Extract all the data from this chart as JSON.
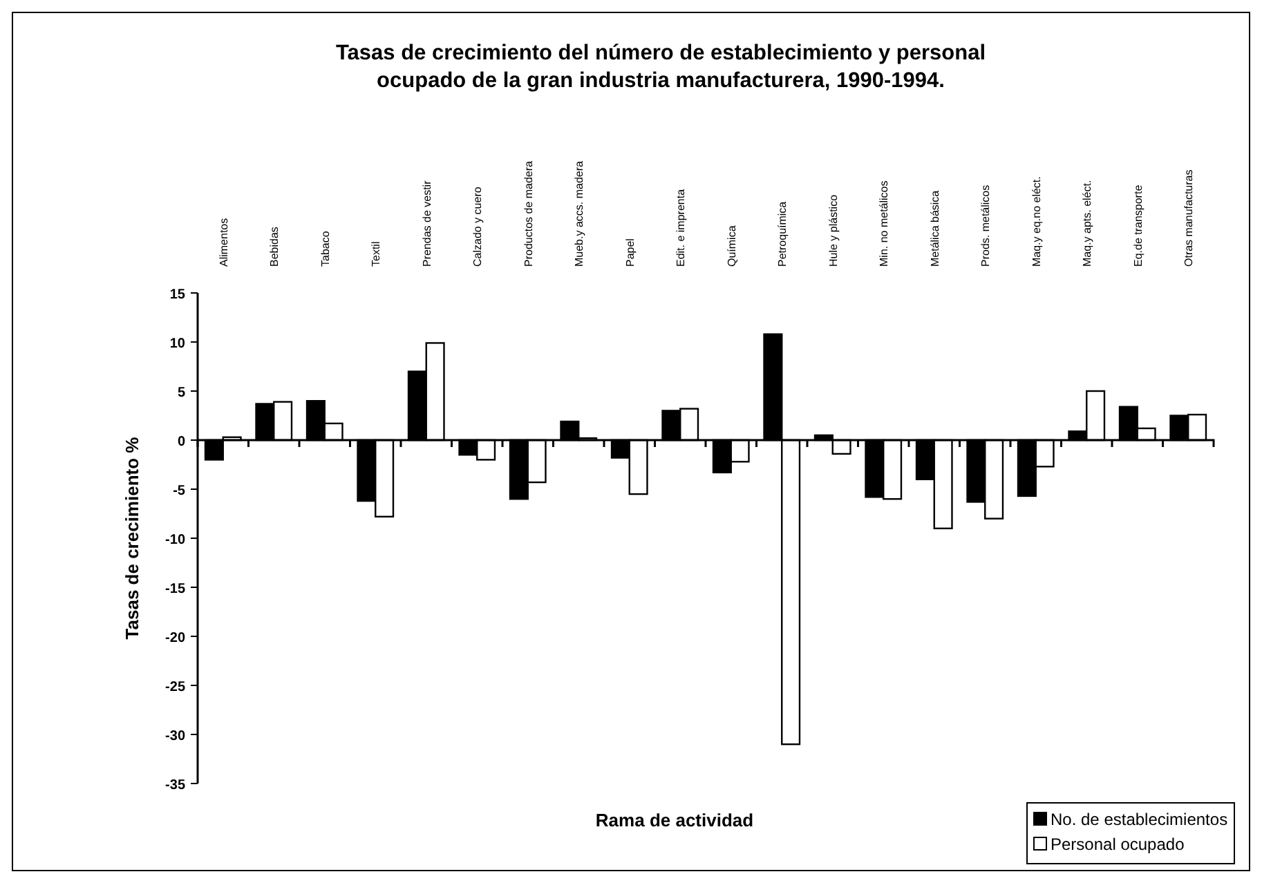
{
  "chart_data": {
    "type": "bar",
    "title": "Tasas de crecimiento del número de establecimiento y personal ocupado de la gran industria manufacturera, 1990-1994.",
    "xlabel": "Rama de actividad",
    "ylabel": "Tasas de crecimiento %",
    "categories": [
      "Alimentos",
      "Bebidas",
      "Tabaco",
      "Textil",
      "Prendas de vestir",
      "Calzado y cuero",
      "Productos de madera",
      "Mueb.y accs. madera",
      "Papel",
      "Edit. e imprenta",
      "Química",
      "Petroquímica",
      "Hule y plástico",
      "Min. no metálicos",
      "Metálica básica",
      "Prods. metálicos",
      "Maq.y eq.no eléct.",
      "Maq.y apts. eléct.",
      "Eq.de transporte",
      "Otras manufacturas"
    ],
    "series": [
      {
        "name": "No. de establecimientos",
        "color": "#000000",
        "values": [
          -2,
          3.7,
          4,
          -6.2,
          7,
          -1.5,
          -6,
          1.9,
          -1.8,
          3,
          -3.3,
          10.8,
          0.5,
          -5.8,
          -4,
          -6.3,
          -5.7,
          0.9,
          3.4,
          2.5
        ]
      },
      {
        "name": "Personal ocupado",
        "color": "#ffffff",
        "values": [
          0.3,
          3.9,
          1.7,
          -7.8,
          9.9,
          -2,
          -4.3,
          0.2,
          -5.5,
          3.2,
          -2.2,
          -31,
          -1.4,
          -6,
          -9,
          -8,
          -2.7,
          5,
          1.2,
          2.6
        ]
      }
    ],
    "ylim": [
      -35,
      15
    ],
    "yticks": [
      -35,
      -30,
      -25,
      -20,
      -15,
      -10,
      -5,
      0,
      5,
      10,
      15
    ],
    "legend": "bottom right"
  }
}
